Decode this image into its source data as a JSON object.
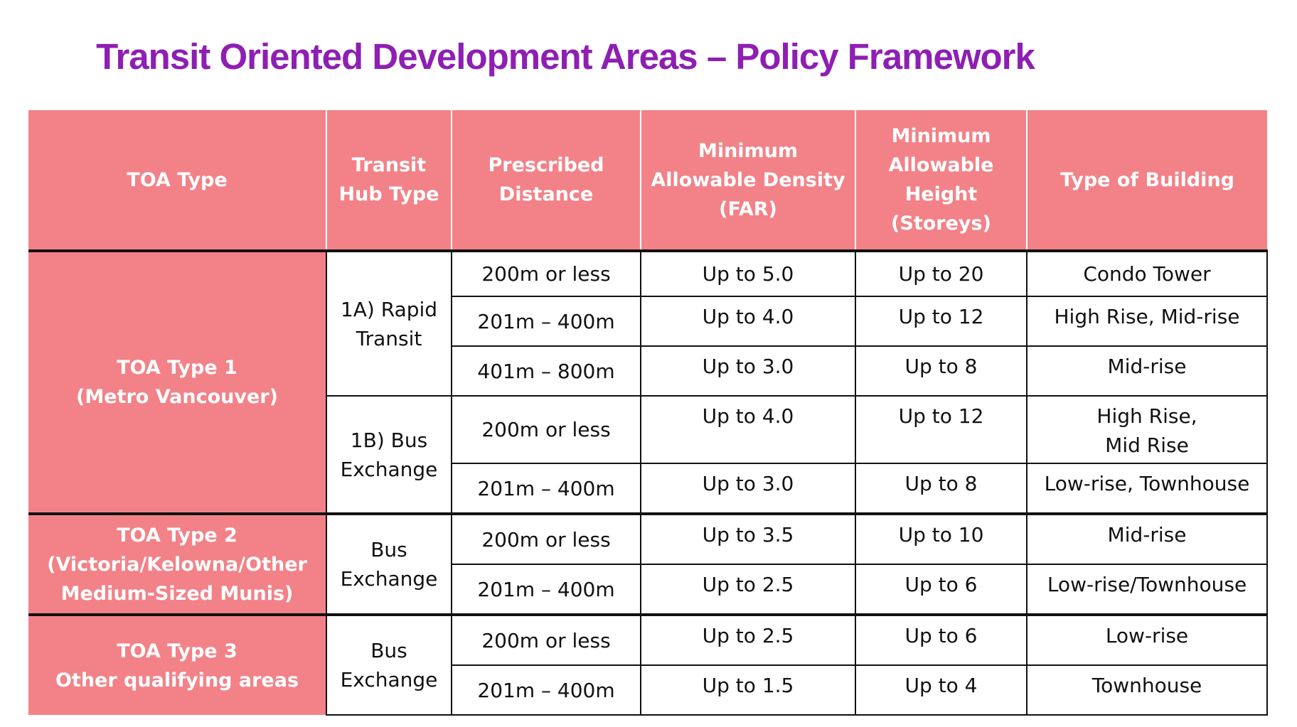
{
  "title": "Transit Oriented Development Areas – Policy Framework",
  "table": {
    "headers": {
      "toa_type": "TOA Type",
      "hub_line1": "Transit",
      "hub_line2": "Hub Type",
      "dist_line1": "Prescribed",
      "dist_line2": "Distance",
      "density_line1": "Minimum",
      "density_line2": "Allowable Density",
      "density_line3": "(FAR)",
      "height_line1": "Minimum",
      "height_line2": "Allowable",
      "height_line3": "Height",
      "height_line4": "(Storeys)",
      "building": "Type of Building"
    },
    "toa1": {
      "line1": "TOA Type 1",
      "line2": "(Metro Vancouver)"
    },
    "toa2": {
      "line1": "TOA Type 2",
      "line2": "(Victoria/Kelowna/Other",
      "line3": "Medium-Sized Munis)"
    },
    "toa3": {
      "line1": "TOA Type 3",
      "line2": "Other qualifying areas"
    },
    "hubs": {
      "h1a_line1": "1A) Rapid",
      "h1a_line2": "Transit",
      "h1b_line1": "1B) Bus",
      "h1b_line2": "Exchange",
      "h2_line1": "Bus",
      "h2_line2": "Exchange",
      "h3_line1": "Bus",
      "h3_line2": "Exchange"
    },
    "rows": [
      {
        "distance": "200m or less",
        "density": "Up to 5.0",
        "height": "Up to 20",
        "building": "Condo Tower"
      },
      {
        "distance": "201m – 400m",
        "density": "Up to 4.0",
        "height": "Up to 12",
        "building": "High Rise, Mid-rise"
      },
      {
        "distance": "401m – 800m",
        "density": "Up to 3.0",
        "height": "Up to 8",
        "building": "Mid-rise"
      },
      {
        "distance": "200m or less",
        "density": "Up to 4.0",
        "height": "Up to 12",
        "building_line1": "High Rise,",
        "building_line2": "Mid Rise"
      },
      {
        "distance": "201m – 400m",
        "density": "Up to 3.0",
        "height": "Up to 8",
        "building": "Low-rise, Townhouse"
      },
      {
        "distance": "200m or less",
        "density": "Up to 3.5",
        "height": "Up to 10",
        "building": "Mid-rise"
      },
      {
        "distance": "201m – 400m",
        "density": "Up to 2.5",
        "height": "Up to 6",
        "building": "Low-rise/Townhouse"
      },
      {
        "distance": "200m or less",
        "density": "Up to 2.5",
        "height": "Up to 6",
        "building": "Low-rise"
      },
      {
        "distance": "201m – 400m",
        "density": "Up to 1.5",
        "height": "Up to 4",
        "building": "Townhouse"
      }
    ]
  },
  "colors": {
    "title": "#8e1fb3",
    "header_bg": "#f28288",
    "header_text": "#ffffff",
    "grid": "#111111"
  }
}
